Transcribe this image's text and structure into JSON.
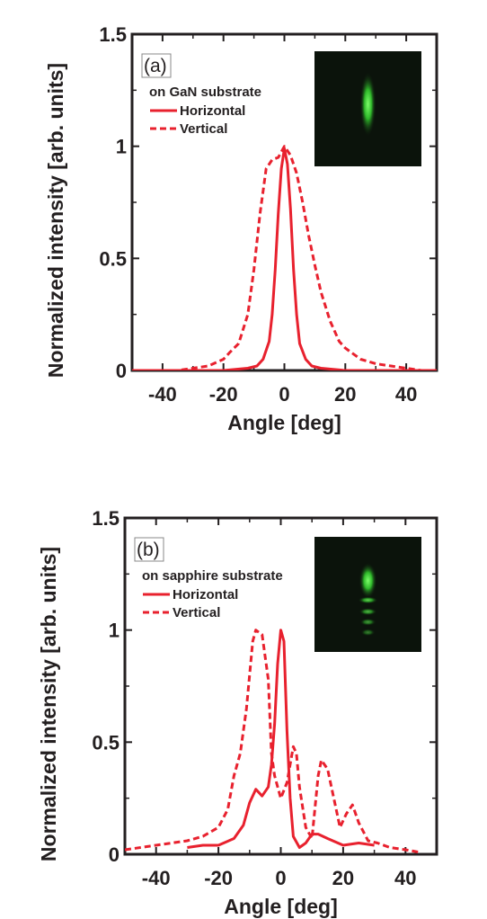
{
  "colors": {
    "series": "#e8212e",
    "axis": "#231f20",
    "inset_bg": "#0b130b"
  },
  "chart_data": [
    {
      "type": "line",
      "panel_label": "(a)",
      "annotation": "on GaN substrate",
      "xlabel": "Angle [deg]",
      "ylabel": "Normalized intensity [arb. units]",
      "xlim": [
        -50,
        50
      ],
      "ylim": [
        0,
        1.5
      ],
      "xticks": [
        -40,
        -20,
        0,
        20,
        40
      ],
      "yticks": [
        0,
        0.5,
        1,
        1.5
      ],
      "ytick_labels": [
        "0",
        "0.5",
        "1",
        "1.5"
      ],
      "legend": [
        "Horizontal",
        "Vertical"
      ],
      "inset_image": "far-field pattern: single green elongated spot",
      "series": [
        {
          "name": "Horizontal",
          "style": "solid",
          "x": [
            -50,
            -20,
            -12,
            -9,
            -7,
            -5,
            -4,
            -3,
            -2,
            -1,
            0,
            1,
            2,
            3,
            4,
            5,
            7,
            9,
            12,
            20,
            50
          ],
          "y": [
            0,
            0,
            0.01,
            0.02,
            0.05,
            0.13,
            0.25,
            0.45,
            0.7,
            0.9,
            0.99,
            0.92,
            0.72,
            0.45,
            0.25,
            0.12,
            0.05,
            0.02,
            0.01,
            0,
            0
          ]
        },
        {
          "name": "Vertical",
          "style": "dashed",
          "x": [
            -50,
            -35,
            -30,
            -25,
            -20,
            -18,
            -15,
            -12,
            -10,
            -8,
            -6,
            -4,
            -2,
            0,
            2,
            4,
            6,
            8,
            10,
            12,
            15,
            18,
            20,
            25,
            30,
            35,
            40,
            45
          ],
          "y": [
            0,
            0,
            0.01,
            0.02,
            0.05,
            0.08,
            0.12,
            0.25,
            0.45,
            0.7,
            0.9,
            0.94,
            0.95,
            1.0,
            0.96,
            0.88,
            0.75,
            0.6,
            0.47,
            0.35,
            0.22,
            0.13,
            0.1,
            0.05,
            0.03,
            0.02,
            0.01,
            0.0
          ]
        }
      ]
    },
    {
      "type": "line",
      "panel_label": "(b)",
      "annotation": "on sapphire substrate",
      "xlabel": "Angle [deg]",
      "ylabel": "Normalized intensity [arb. units]",
      "xlim": [
        -50,
        50
      ],
      "ylim": [
        0,
        1.5
      ],
      "xticks": [
        -40,
        -20,
        0,
        20,
        40
      ],
      "yticks": [
        0,
        0.5,
        1,
        1.5
      ],
      "ytick_labels": [
        "0",
        "0.5",
        "1",
        "1.5"
      ],
      "legend": [
        "Horizontal",
        "Vertical"
      ],
      "inset_image": "far-field pattern: multiple stacked green spots (fringes)",
      "series": [
        {
          "name": "Horizontal",
          "style": "solid",
          "x": [
            -30,
            -25,
            -20,
            -15,
            -12,
            -10,
            -8,
            -6,
            -4,
            -3,
            -2,
            -1,
            0,
            1,
            2,
            3,
            4,
            6,
            8,
            10,
            12,
            15,
            20,
            25,
            30
          ],
          "y": [
            0.03,
            0.04,
            0.04,
            0.07,
            0.13,
            0.23,
            0.29,
            0.26,
            0.3,
            0.4,
            0.58,
            0.85,
            1.0,
            0.95,
            0.55,
            0.25,
            0.08,
            0.03,
            0.05,
            0.09,
            0.09,
            0.07,
            0.04,
            0.05,
            0.04
          ]
        },
        {
          "name": "Vertical",
          "style": "dashed",
          "x": [
            -50,
            -40,
            -30,
            -25,
            -20,
            -17,
            -15,
            -13,
            -11,
            -10,
            -9,
            -8,
            -6,
            -4,
            -3,
            -2,
            0,
            2,
            4,
            5,
            6,
            8,
            10,
            12,
            13,
            15,
            17,
            19,
            21,
            23,
            25,
            28,
            31,
            35,
            40,
            44
          ],
          "y": [
            0.02,
            0.04,
            0.06,
            0.08,
            0.12,
            0.2,
            0.35,
            0.45,
            0.65,
            0.8,
            0.95,
            1.0,
            0.98,
            0.78,
            0.45,
            0.35,
            0.25,
            0.32,
            0.48,
            0.45,
            0.3,
            0.12,
            0.07,
            0.35,
            0.42,
            0.38,
            0.25,
            0.12,
            0.18,
            0.22,
            0.14,
            0.06,
            0.05,
            0.03,
            0.02,
            0.01
          ]
        }
      ]
    }
  ]
}
